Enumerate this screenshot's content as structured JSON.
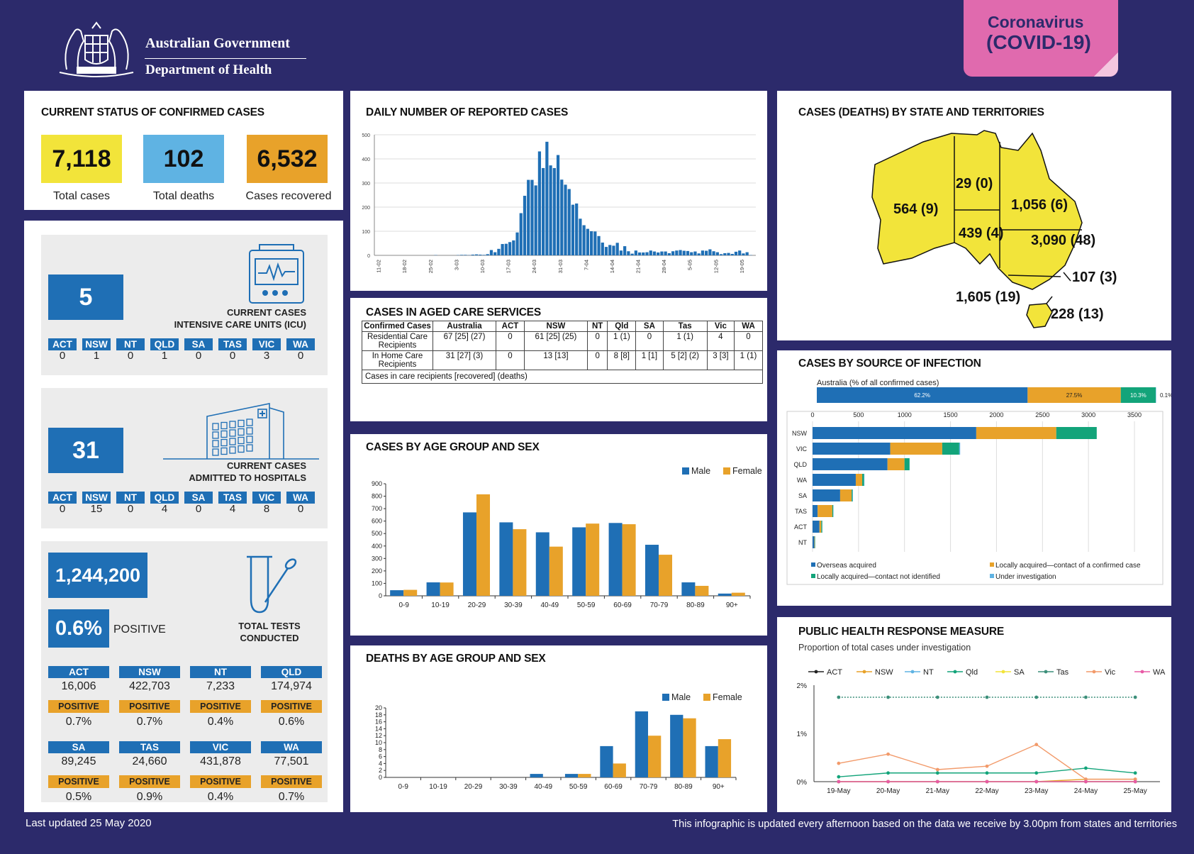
{
  "header": {
    "gov_line1": "Australian Government",
    "gov_line2": "Department of Health",
    "badge_line1": "Coronavirus",
    "badge_line2": "(COVID-19)"
  },
  "status": {
    "title": "CURRENT STATUS OF CONFIRMED CASES",
    "total_cases": "7,118",
    "total_cases_label": "Total cases",
    "total_deaths": "102",
    "total_deaths_label": "Total deaths",
    "recovered": "6,532",
    "recovered_label": "Cases recovered"
  },
  "states": [
    "ACT",
    "NSW",
    "NT",
    "QLD",
    "SA",
    "TAS",
    "VIC",
    "WA"
  ],
  "icu": {
    "value": "5",
    "label1": "CURRENT CASES",
    "label2": "INTENSIVE CARE UNITS (ICU)",
    "by_state": [
      "0",
      "1",
      "0",
      "1",
      "0",
      "0",
      "3",
      "0"
    ]
  },
  "hospital": {
    "value": "31",
    "label1": "CURRENT CASES",
    "label2": "ADMITTED TO HOSPITALS",
    "by_state": [
      "0",
      "15",
      "0",
      "4",
      "0",
      "4",
      "8",
      "0"
    ]
  },
  "tests": {
    "value": "1,244,200",
    "positive_pct": "0.6%",
    "positive_label": "POSITIVE",
    "label1": "TOTAL TESTS",
    "label2": "CONDUCTED",
    "positive_tag": "POSITIVE",
    "states": [
      {
        "name": "ACT",
        "tests": "16,006",
        "pct": "0.7%"
      },
      {
        "name": "NSW",
        "tests": "422,703",
        "pct": "0.7%"
      },
      {
        "name": "NT",
        "tests": "7,233",
        "pct": "0.4%"
      },
      {
        "name": "QLD",
        "tests": "174,974",
        "pct": "0.6%"
      },
      {
        "name": "SA",
        "tests": "89,245",
        "pct": "0.5%"
      },
      {
        "name": "TAS",
        "tests": "24,660",
        "pct": "0.9%"
      },
      {
        "name": "VIC",
        "tests": "431,878",
        "pct": "0.4%"
      },
      {
        "name": "WA",
        "tests": "77,501",
        "pct": "0.7%"
      }
    ]
  },
  "aged_care": {
    "title": "CASES IN AGED CARE SERVICES",
    "headers": [
      "Confirmed Cases",
      "Australia",
      "ACT",
      "NSW",
      "NT",
      "Qld",
      "SA",
      "Tas",
      "Vic",
      "WA"
    ],
    "rows": [
      {
        "label": "Residential Care Recipients",
        "cells": [
          "67 [25] (27)",
          "0",
          "61 [25] (25)",
          "0",
          "1 (1)",
          "0",
          "1 (1)",
          "4",
          "0"
        ]
      },
      {
        "label": "In Home Care Recipients",
        "cells": [
          "31 [27] (3)",
          "0",
          "13 [13]",
          "0",
          "8 [8]",
          "1 [1]",
          "5 [2] (2)",
          "3 [3]",
          "1 (1)"
        ]
      }
    ],
    "note": "Cases in care recipients [recovered] (deaths)"
  },
  "map": {
    "title": "CASES (DEATHS) BY STATE AND TERRITORIES",
    "labels": [
      {
        "state": "WA",
        "text": "564 (9)"
      },
      {
        "state": "NT",
        "text": "29 (0)"
      },
      {
        "state": "QLD",
        "text": "1,056 (6)"
      },
      {
        "state": "SA",
        "text": "439 (4)"
      },
      {
        "state": "NSW",
        "text": "3,090 (48)"
      },
      {
        "state": "ACT",
        "text": "107 (3)"
      },
      {
        "state": "VIC",
        "text": "1,605 (19)"
      },
      {
        "state": "TAS",
        "text": "228 (13)"
      }
    ]
  },
  "footer": {
    "updated": "Last updated 25 May 2020",
    "note": "This infographic is updated every afternoon based on the data we receive by 3.00pm from states and territories"
  },
  "colors": {
    "navy": "#2c2a6b",
    "blue": "#1f6fb5",
    "orange": "#e8a22a",
    "green": "#13a47a",
    "yellow": "#f2e43a",
    "pink": "#e85aa6"
  },
  "chart_data": [
    {
      "id": "daily",
      "type": "bar",
      "title": "DAILY NUMBER OF REPORTED CASES",
      "ylim": [
        0,
        500
      ],
      "yticks": [
        "0",
        "100",
        "200",
        "300",
        "400",
        "500"
      ],
      "xticks": [
        "11-02",
        "18-02",
        "25-02",
        "3-03",
        "10-03",
        "17-03",
        "24-03",
        "31-03",
        "7-04",
        "14-04",
        "21-04",
        "28-04",
        "5-05",
        "12-05",
        "19-05"
      ],
      "values": [
        0,
        0,
        0,
        0,
        0,
        0,
        0,
        0,
        0,
        0,
        0,
        0,
        0,
        0,
        0,
        1,
        0,
        0,
        0,
        0,
        0,
        1,
        2,
        2,
        1,
        3,
        4,
        3,
        2,
        5,
        22,
        13,
        27,
        47,
        48,
        55,
        62,
        95,
        175,
        247,
        313,
        313,
        290,
        431,
        362,
        471,
        373,
        362,
        416,
        314,
        293,
        275,
        210,
        215,
        152,
        125,
        110,
        100,
        99,
        80,
        53,
        35,
        43,
        40,
        52,
        20,
        38,
        17,
        7,
        20,
        12,
        12,
        13,
        20,
        16,
        12,
        16,
        16,
        9,
        17,
        20,
        22,
        19,
        18,
        13,
        16,
        8,
        20,
        19,
        25,
        17,
        13,
        5,
        9,
        10,
        6,
        15,
        20,
        8,
        13,
        1
      ]
    },
    {
      "id": "age_cases",
      "type": "bar",
      "title": "CASES BY AGE GROUP AND SEX",
      "ylim": [
        0,
        900
      ],
      "yticks": [
        "0",
        "100",
        "200",
        "300",
        "400",
        "500",
        "600",
        "700",
        "800",
        "900"
      ],
      "categories": [
        "0-9",
        "10-19",
        "20-29",
        "30-39",
        "40-49",
        "50-59",
        "60-69",
        "70-79",
        "80-89",
        "90+"
      ],
      "series": [
        {
          "name": "Male",
          "color": "#1f6fb5",
          "values": [
            45,
            108,
            670,
            590,
            510,
            550,
            585,
            410,
            108,
            18
          ]
        },
        {
          "name": "Female",
          "color": "#e8a22a",
          "values": [
            48,
            107,
            815,
            535,
            395,
            580,
            575,
            330,
            80,
            25
          ]
        }
      ]
    },
    {
      "id": "age_deaths",
      "type": "bar",
      "title": "DEATHS BY AGE GROUP AND SEX",
      "ylim": [
        0,
        20
      ],
      "yticks": [
        "0",
        "2",
        "4",
        "6",
        "8",
        "10",
        "12",
        "14",
        "16",
        "18",
        "20"
      ],
      "categories": [
        "0-9",
        "10-19",
        "20-29",
        "30-39",
        "40-49",
        "50-59",
        "60-69",
        "70-79",
        "80-89",
        "90+"
      ],
      "series": [
        {
          "name": "Male",
          "color": "#1f6fb5",
          "values": [
            0,
            0,
            0,
            0,
            1,
            1,
            9,
            19,
            18,
            9
          ]
        },
        {
          "name": "Female",
          "color": "#e8a22a",
          "values": [
            0,
            0,
            0,
            0,
            0,
            1,
            4,
            12,
            17,
            11
          ]
        }
      ]
    },
    {
      "id": "source_aus",
      "type": "bar",
      "title": "CASES BY SOURCE OF INFECTION",
      "subtitle": "Australia (% of all confirmed cases)",
      "segments": [
        {
          "name": "Overseas acquired",
          "pct": 62.2,
          "label": "62.2%",
          "color": "#1f6fb5"
        },
        {
          "name": "Locally acquired—contact of a confirmed case",
          "pct": 27.5,
          "label": "27.5%",
          "color": "#e8a22a"
        },
        {
          "name": "Locally acquired—contact not identified",
          "pct": 10.3,
          "label": "10.3%",
          "color": "#13a47a"
        },
        {
          "name": "Under investigation",
          "pct": 0.1,
          "label": "0.1%",
          "color": "#5fb3e3"
        }
      ]
    },
    {
      "id": "source_state",
      "type": "bar",
      "xlim": [
        0,
        3500
      ],
      "xticks": [
        "0",
        "500",
        "1000",
        "1500",
        "2000",
        "2500",
        "3000",
        "3500"
      ],
      "categories": [
        "NSW",
        "VIC",
        "QLD",
        "WA",
        "SA",
        "TAS",
        "ACT",
        "NT"
      ],
      "series": [
        {
          "name": "Overseas acquired",
          "color": "#1f6fb5",
          "values": [
            1780,
            845,
            815,
            470,
            300,
            55,
            75,
            20
          ]
        },
        {
          "name": "Locally acquired—contact of a confirmed case",
          "color": "#e8a22a",
          "values": [
            870,
            565,
            185,
            70,
            125,
            160,
            20,
            5
          ]
        },
        {
          "name": "Locally acquired—contact not identified",
          "color": "#13a47a",
          "values": [
            440,
            185,
            55,
            20,
            10,
            10,
            10,
            4
          ]
        },
        {
          "name": "Under investigation",
          "color": "#5fb3e3",
          "values": [
            0,
            10,
            1,
            4,
            4,
            3,
            2,
            0
          ]
        }
      ]
    },
    {
      "id": "response",
      "type": "line",
      "title": "PUBLIC HEALTH RESPONSE MEASURE",
      "subtitle": "Proportion of total cases under investigation",
      "ylim": [
        0,
        2
      ],
      "yticks": [
        "0%",
        "1%",
        "2%"
      ],
      "x": [
        "19-May",
        "20-May",
        "21-May",
        "22-May",
        "23-May",
        "24-May",
        "25-May"
      ],
      "series": [
        {
          "name": "ACT",
          "color": "#222222",
          "values": [
            0,
            0,
            0,
            0,
            0,
            0,
            0
          ]
        },
        {
          "name": "NSW",
          "color": "#e8a22a",
          "values": [
            0,
            0,
            0,
            0,
            0,
            0.05,
            0.05
          ]
        },
        {
          "name": "NT",
          "color": "#5fb3e3",
          "values": [
            0,
            0,
            0,
            0,
            0,
            0,
            0
          ]
        },
        {
          "name": "Qld",
          "color": "#13a47a",
          "values": [
            0.1,
            0.18,
            0.18,
            0.18,
            0.18,
            0.28,
            0.18
          ]
        },
        {
          "name": "SA",
          "color": "#f2e43a",
          "values": [
            0,
            0,
            0,
            0,
            0,
            0,
            0
          ]
        },
        {
          "name": "Tas",
          "color": "#3c8f7a",
          "values": [
            1.75,
            1.75,
            1.75,
            1.75,
            1.75,
            1.75,
            1.75
          ]
        },
        {
          "name": "Vic",
          "color": "#f29a6a",
          "values": [
            0.38,
            0.57,
            0.25,
            0.32,
            0.77,
            0.05,
            0.05
          ]
        },
        {
          "name": "WA",
          "color": "#e85aa6",
          "values": [
            0,
            0,
            0,
            0,
            0,
            0,
            0
          ]
        }
      ]
    }
  ]
}
